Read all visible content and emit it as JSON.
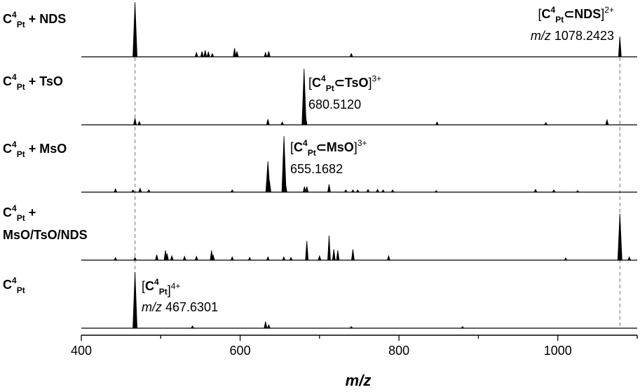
{
  "chart_data": {
    "type": "line",
    "xlabel": "m/z",
    "xlim": [
      400,
      1100
    ],
    "xticks": [
      400,
      600,
      800,
      1000
    ],
    "grid": false,
    "legend": "none",
    "dashed_reference_lines": [
      467.6301,
      1078.2423
    ],
    "series": [
      {
        "label": {
          "base": "C",
          "sup": "4",
          "sub": "Pt",
          "suffix": " + NDS"
        },
        "peaks": [
          [
            467.6,
            1.0
          ],
          [
            545,
            0.08
          ],
          [
            552,
            0.1
          ],
          [
            556,
            0.12
          ],
          [
            560,
            0.09
          ],
          [
            565,
            0.06
          ],
          [
            593,
            0.16
          ],
          [
            596,
            0.1
          ],
          [
            632,
            0.08
          ],
          [
            636,
            0.1
          ],
          [
            740,
            0.06
          ],
          [
            1078.2,
            0.37
          ]
        ],
        "annotation": {
          "open": "[",
          "base": "C",
          "sup": "4",
          "sub": "Pt",
          "mid": "⊂NDS",
          "close": "]",
          "charge": "2+",
          "mz_prefix": "m/z",
          "mz": "1078.2423"
        }
      },
      {
        "label": {
          "base": "C",
          "sup": "4",
          "sub": "Pt",
          "suffix": " + TsO"
        },
        "peaks": [
          [
            467.6,
            0.12
          ],
          [
            473,
            0.06
          ],
          [
            635,
            0.1
          ],
          [
            653,
            0.05
          ],
          [
            680.5,
            1.0
          ],
          [
            682.5,
            0.15
          ],
          [
            848,
            0.05
          ],
          [
            985,
            0.04
          ],
          [
            1062,
            0.09
          ]
        ],
        "annotation": {
          "open": "[",
          "base": "C",
          "sup": "4",
          "sub": "Pt",
          "mid": "⊂TsO",
          "close": "]",
          "charge": "3+",
          "mz_prefix": "",
          "mz": "680.5120"
        }
      },
      {
        "label": {
          "base": "C",
          "sup": "4",
          "sub": "Pt",
          "suffix": " + MsO"
        },
        "peaks": [
          [
            443,
            0.06
          ],
          [
            465,
            0.04
          ],
          [
            474,
            0.07
          ],
          [
            485,
            0.04
          ],
          [
            590,
            0.04
          ],
          [
            635,
            0.55
          ],
          [
            637,
            0.2
          ],
          [
            655.2,
            1.0
          ],
          [
            657.2,
            0.15
          ],
          [
            681,
            0.1
          ],
          [
            684,
            0.1
          ],
          [
            712,
            0.14
          ],
          [
            733,
            0.04
          ],
          [
            742,
            0.04
          ],
          [
            748,
            0.04
          ],
          [
            761,
            0.05
          ],
          [
            773,
            0.05
          ],
          [
            780,
            0.04
          ],
          [
            792,
            0.04
          ],
          [
            847,
            0.03
          ],
          [
            972,
            0.05
          ],
          [
            995,
            0.04
          ],
          [
            1025,
            0.03
          ]
        ],
        "annotation": {
          "open": "[",
          "base": "C",
          "sup": "4",
          "sub": "Pt",
          "mid": "⊂MsO",
          "close": "]",
          "charge": "3+",
          "mz_prefix": "",
          "mz": "655.1682"
        }
      },
      {
        "label": {
          "base": "C",
          "sup": "4",
          "sub": "Pt",
          "suffix": " +",
          "line2": "MsO/TsO/NDS"
        },
        "peaks": [
          [
            443,
            0.05
          ],
          [
            467.6,
            0.05
          ],
          [
            495,
            0.1
          ],
          [
            506,
            0.18
          ],
          [
            508,
            0.12
          ],
          [
            514,
            0.08
          ],
          [
            530,
            0.07
          ],
          [
            545,
            0.07
          ],
          [
            564,
            0.18
          ],
          [
            566,
            0.1
          ],
          [
            590,
            0.06
          ],
          [
            612,
            0.05
          ],
          [
            635,
            0.06
          ],
          [
            655,
            0.06
          ],
          [
            664,
            0.05
          ],
          [
            684,
            0.35
          ],
          [
            700,
            0.08
          ],
          [
            712,
            0.45
          ],
          [
            718,
            0.2
          ],
          [
            723,
            0.18
          ],
          [
            742,
            0.2
          ],
          [
            787,
            0.08
          ],
          [
            1010,
            0.04
          ],
          [
            1078.2,
            0.85
          ],
          [
            1090,
            0.06
          ]
        ],
        "annotation": null
      },
      {
        "label": {
          "base": "C",
          "sup": "4",
          "sub": "Pt",
          "suffix": ""
        },
        "peaks": [
          [
            467.6,
            1.0
          ],
          [
            540,
            0.04
          ],
          [
            632,
            0.12
          ],
          [
            636,
            0.06
          ],
          [
            740,
            0.03
          ],
          [
            880,
            0.03
          ]
        ],
        "annotation": {
          "open": "[",
          "base": "C",
          "sup": "4",
          "sub": "Pt",
          "mid": "",
          "close": "]",
          "charge": "4+",
          "mz_prefix": "m/z",
          "mz": "467.6301"
        }
      }
    ]
  }
}
